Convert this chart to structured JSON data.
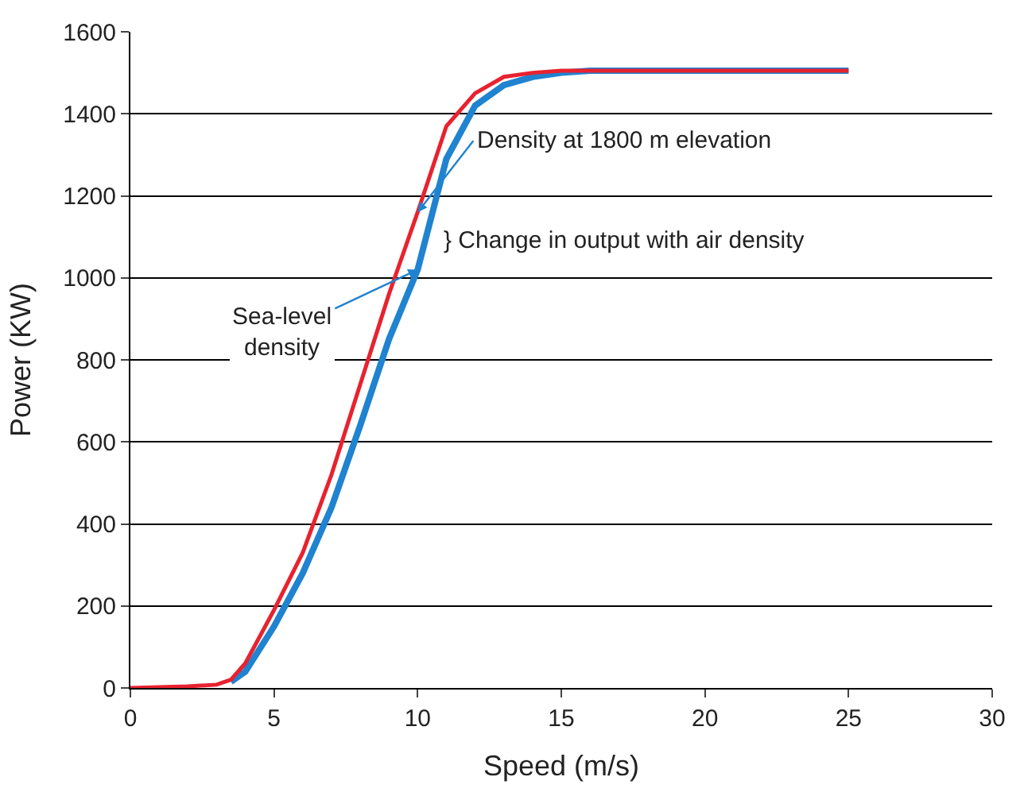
{
  "chart_data": {
    "type": "line",
    "xlabel": "Speed (m/s)",
    "ylabel": "Power (KW)",
    "xlim": [
      0,
      30
    ],
    "xticks": [
      0,
      5,
      10,
      15,
      20,
      25,
      30
    ],
    "ylim": [
      0,
      1600
    ],
    "yticks": [
      0,
      200,
      400,
      600,
      800,
      1000,
      1200,
      1400,
      1600
    ],
    "grid": "y",
    "marker": "none",
    "line_style": "solid",
    "series": [
      {
        "color": "#1f83d0",
        "x": [
          3.5,
          4,
          5,
          6,
          7,
          8,
          9,
          10,
          11,
          12,
          13,
          14,
          15,
          16,
          20,
          25
        ],
        "values": [
          15,
          40,
          150,
          280,
          440,
          640,
          850,
          1020,
          1290,
          1420,
          1470,
          1490,
          1500,
          1505,
          1505,
          1505
        ]
      },
      {
        "color": "#e8222f",
        "x": [
          0,
          1,
          2,
          3,
          3.5,
          4,
          5,
          6,
          7,
          8,
          9,
          10,
          11,
          12,
          13,
          14,
          15,
          20,
          25
        ],
        "values": [
          0,
          2,
          4,
          8,
          20,
          60,
          190,
          330,
          520,
          740,
          960,
          1160,
          1370,
          1450,
          1490,
          1500,
          1505,
          1505,
          1505
        ]
      }
    ],
    "annotations": [
      {
        "text": "Density at 1800 m elevation",
        "x": 10,
        "y": 1160
      },
      {
        "text": "Sea-level density",
        "x": 10,
        "y": 1020
      },
      "} Change in output with air density"
    ]
  }
}
